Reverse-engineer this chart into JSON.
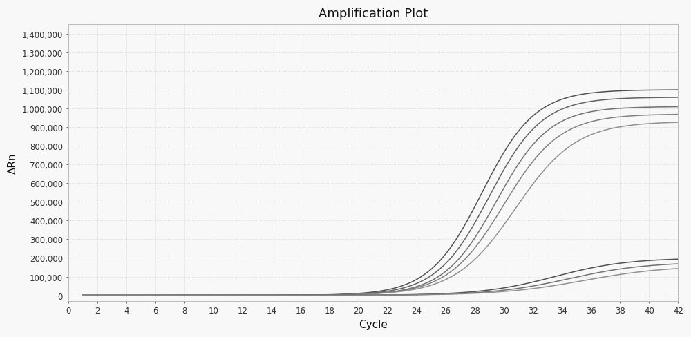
{
  "title": "Amplification Plot",
  "xlabel": "Cycle",
  "ylabel": "ΔRn",
  "xlim": [
    0,
    42
  ],
  "ylim": [
    -30000,
    1450000
  ],
  "xticks": [
    0,
    2,
    4,
    6,
    8,
    10,
    12,
    14,
    16,
    18,
    20,
    22,
    24,
    26,
    28,
    30,
    32,
    34,
    36,
    38,
    40,
    42
  ],
  "yticks": [
    0,
    100000,
    200000,
    300000,
    400000,
    500000,
    600000,
    700000,
    800000,
    900000,
    1000000,
    1100000,
    1200000,
    1300000,
    1400000
  ],
  "background_color": "#f8f8f8",
  "plot_bg_color": "#f8f8f8",
  "grid_color": "#d0d0d0",
  "upper_curves": {
    "midpoints": [
      28.5,
      29.0,
      29.5,
      30.0,
      30.8
    ],
    "plateaus": [
      1100000,
      1060000,
      1010000,
      970000,
      930000
    ],
    "steepness": [
      0.55,
      0.55,
      0.55,
      0.52,
      0.48
    ],
    "colors": [
      "#444444",
      "#555555",
      "#666666",
      "#777777",
      "#888888"
    ]
  },
  "lower_curves": {
    "midpoints": [
      33.5,
      34.5,
      35.5
    ],
    "plateaus": [
      200000,
      178000,
      158000
    ],
    "steepness": [
      0.4,
      0.38,
      0.35
    ],
    "colors": [
      "#444444",
      "#666666",
      "#888888"
    ]
  },
  "title_fontsize": 13,
  "label_fontsize": 11,
  "tick_fontsize": 8.5
}
